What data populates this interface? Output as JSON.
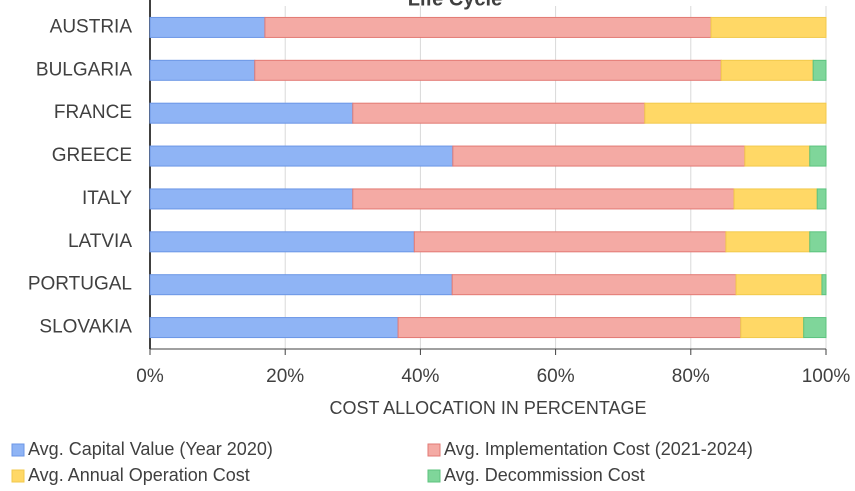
{
  "chart_data": {
    "type": "stacked-bar-horizontal",
    "title": "Life Cycle",
    "x_label": "COST ALLOCATION IN PERCENTAGE",
    "categories": [
      "AUSTRIA",
      "BULGARIA",
      "FRANCE",
      "GREECE",
      "ITALY",
      "LATVIA",
      "PORTUGAL",
      "SLOVAKIA"
    ],
    "series": [
      {
        "name": "Avg. Capital Value (Year 2020)",
        "color": "#8fb4f5",
        "stroke": "#6b96e6",
        "values": [
          17.0,
          15.5,
          30.0,
          44.8,
          30.0,
          39.1,
          44.7,
          36.7
        ]
      },
      {
        "name": "Avg. Implementation Cost (2021-2024)",
        "color": "#f4aaa4",
        "stroke": "#e27a74",
        "values": [
          66.0,
          69.0,
          43.2,
          43.2,
          56.4,
          46.1,
          42.0,
          50.7
        ]
      },
      {
        "name": "Avg. Annual Operation Cost",
        "color": "#ffd866",
        "stroke": "#f2c94c",
        "values": [
          17.0,
          13.6,
          26.8,
          9.6,
          12.3,
          12.4,
          12.7,
          9.3
        ]
      },
      {
        "name": "Avg. Decommission Cost",
        "color": "#7fd69a",
        "stroke": "#5cc37e",
        "values": [
          0,
          1.9,
          0,
          2.4,
          1.3,
          2.4,
          0.6,
          3.3
        ]
      }
    ],
    "xlim": [
      0,
      100
    ],
    "xticks": [
      {
        "value": 0,
        "label": "0%"
      },
      {
        "value": 20,
        "label": "20%"
      },
      {
        "value": 40,
        "label": "40%"
      },
      {
        "value": 60,
        "label": "60%"
      },
      {
        "value": 80,
        "label": "80%"
      },
      {
        "value": 100,
        "label": "100%"
      }
    ],
    "grid": true
  }
}
